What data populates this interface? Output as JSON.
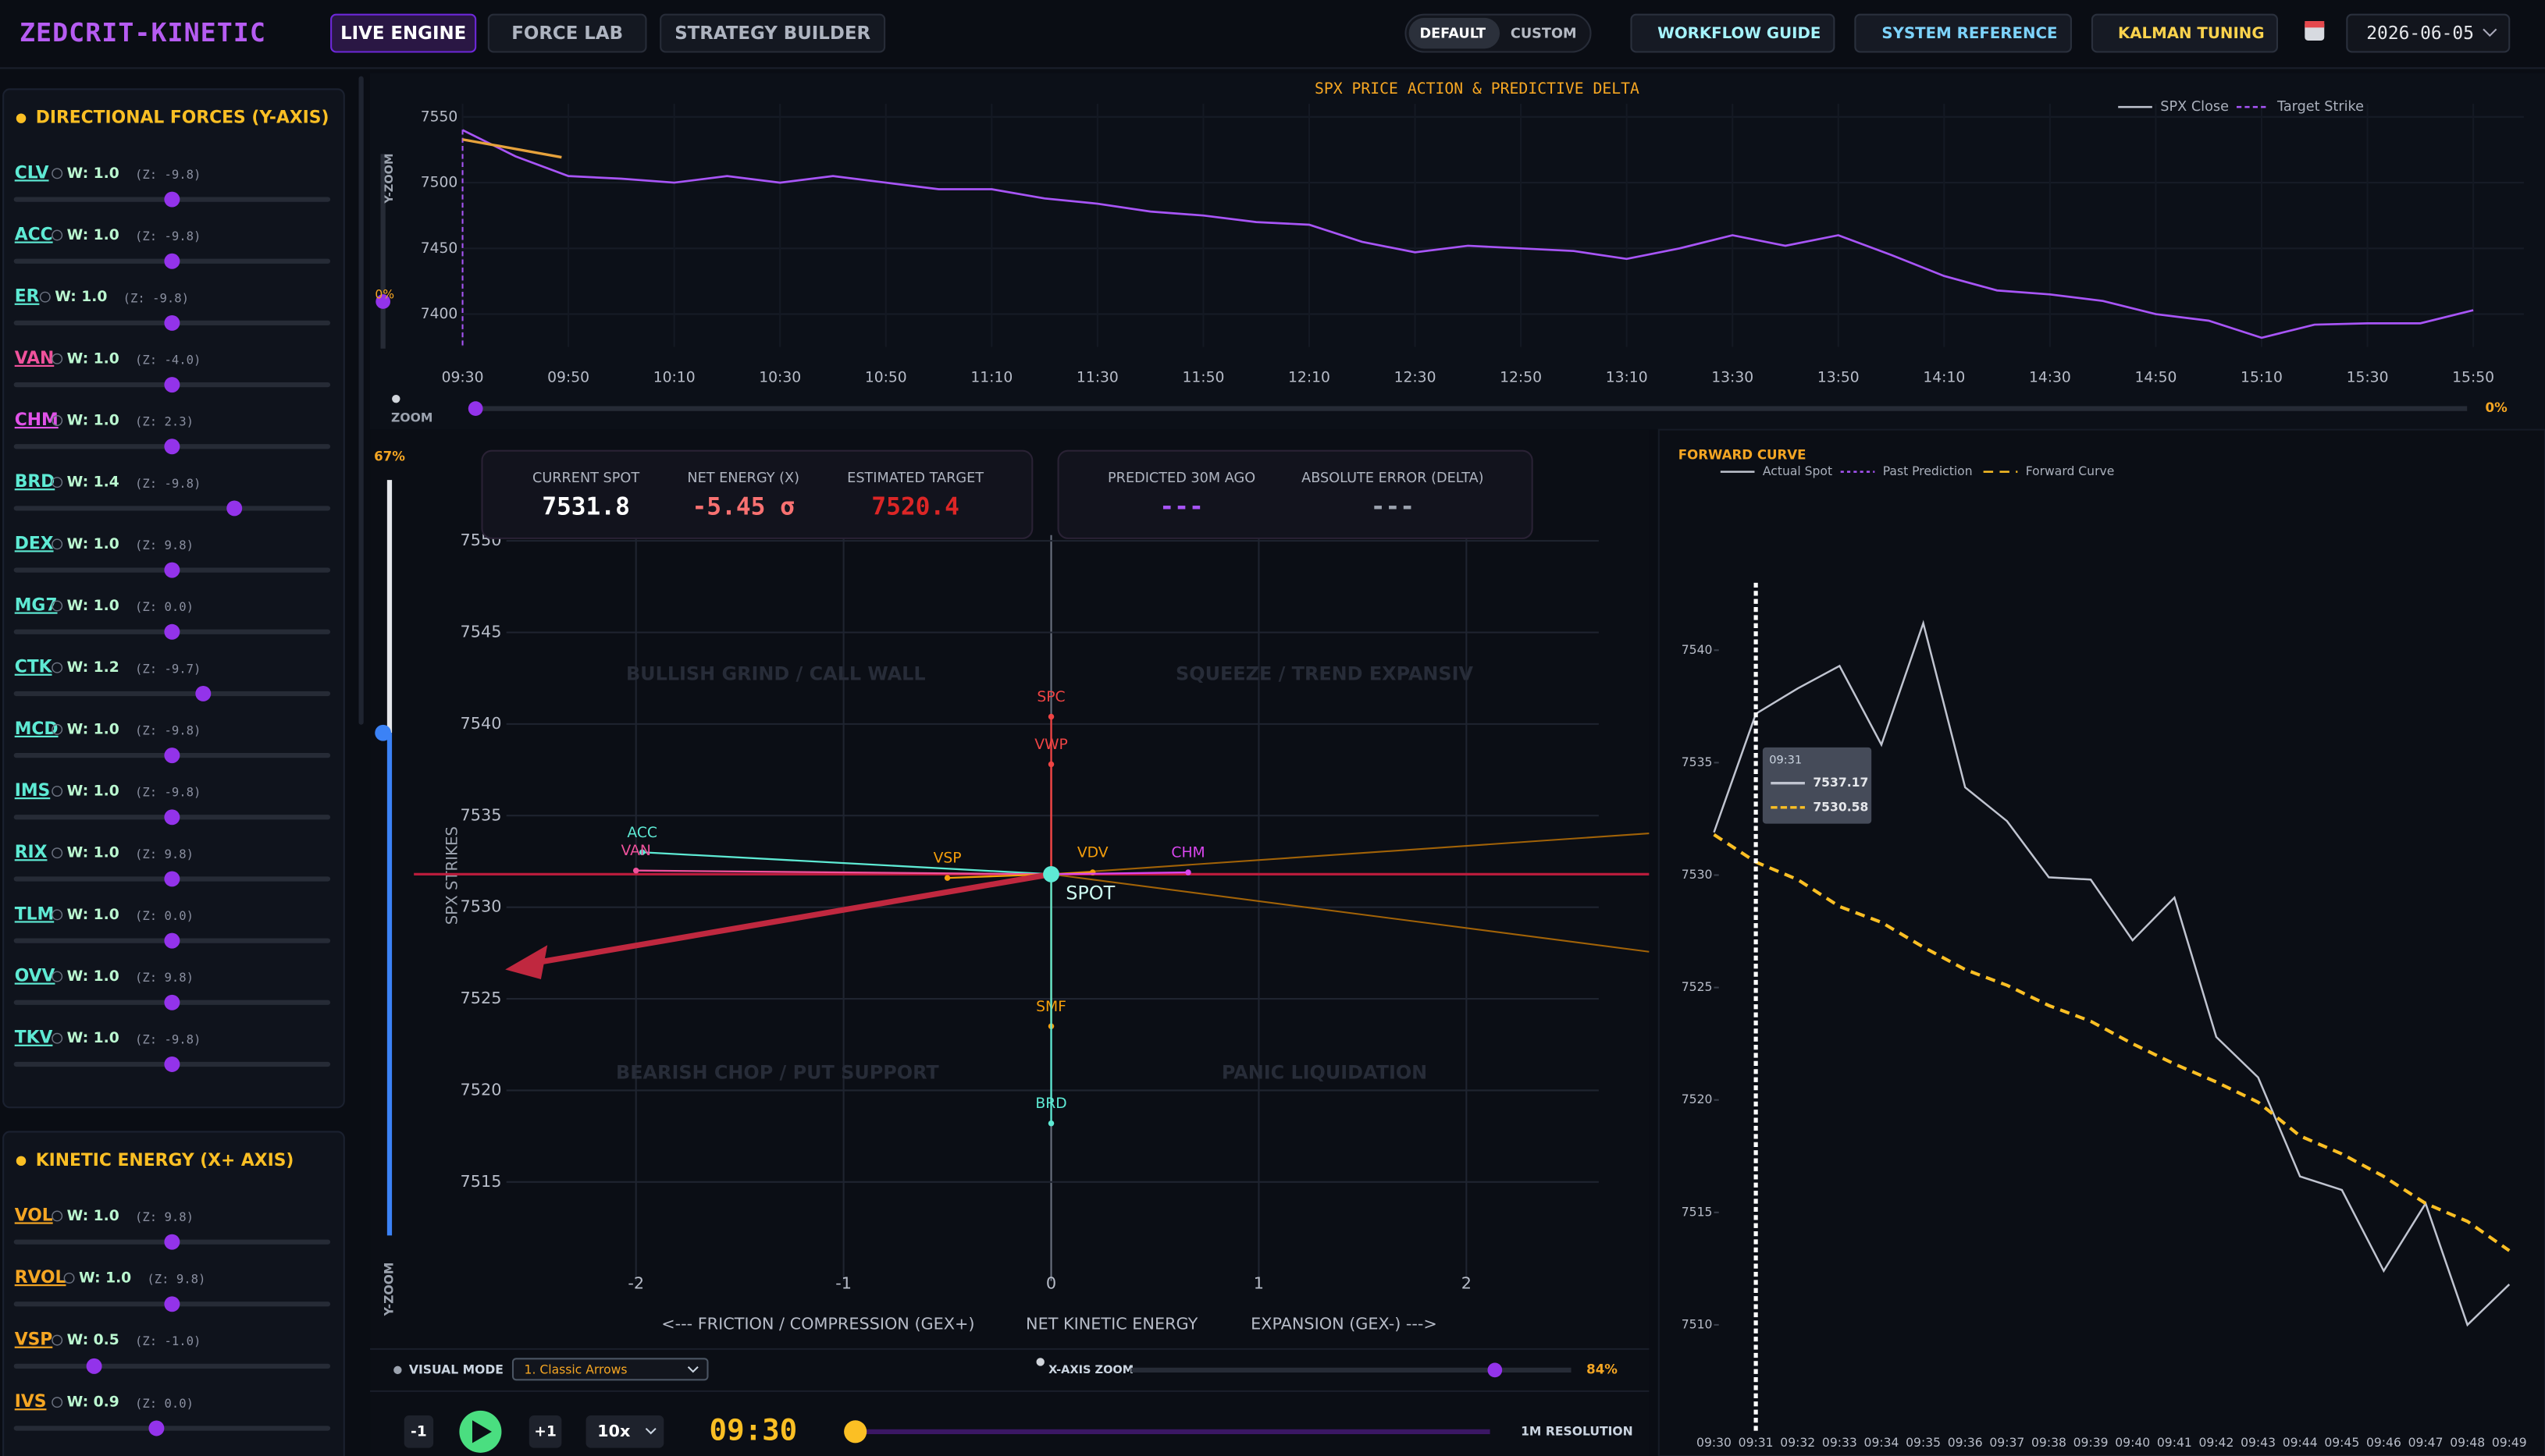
{
  "header": {
    "brand": "ZEDCRIT-KINETIC",
    "tabs": [
      "LIVE ENGINE",
      "FORCE LAB",
      "STRATEGY BUILDER"
    ],
    "modes": [
      "DEFAULT",
      "CUSTOM"
    ],
    "buttons": [
      "WORKFLOW GUIDE",
      "SYSTEM REFERENCE",
      "KALMAN TUNING"
    ],
    "date": "2026-06-05"
  },
  "directional_forces": {
    "title": "DIRECTIONAL FORCES (Y-AXIS)",
    "weight_range": [
      0,
      2
    ],
    "items": [
      {
        "code": "CLV",
        "color": "#5eead4",
        "weight": 1.0,
        "weight_label": "W: 1.0",
        "z_label": "(Z: -9.8)"
      },
      {
        "code": "ACC",
        "color": "#5eead4",
        "weight": 1.0,
        "weight_label": "W: 1.0",
        "z_label": "(Z: -9.8)"
      },
      {
        "code": "ER",
        "color": "#5eead4",
        "weight": 1.0,
        "weight_label": "W: 1.0",
        "z_label": "(Z: -9.8)"
      },
      {
        "code": "VAN",
        "color": "#f0529c",
        "weight": 1.0,
        "weight_label": "W: 1.0",
        "z_label": "(Z: -4.0)"
      },
      {
        "code": "CHM",
        "color": "#e052e8",
        "weight": 1.0,
        "weight_label": "W: 1.0",
        "z_label": "(Z: 2.3)"
      },
      {
        "code": "BRD",
        "color": "#5eead4",
        "weight": 1.4,
        "weight_label": "W: 1.4",
        "z_label": "(Z: -9.8)"
      },
      {
        "code": "DEX",
        "color": "#5eead4",
        "weight": 1.0,
        "weight_label": "W: 1.0",
        "z_label": "(Z: 9.8)"
      },
      {
        "code": "MG7",
        "color": "#5eead4",
        "weight": 1.0,
        "weight_label": "W: 1.0",
        "z_label": "(Z: 0.0)"
      },
      {
        "code": "CTK",
        "color": "#5eead4",
        "weight": 1.2,
        "weight_label": "W: 1.2",
        "z_label": "(Z: -9.7)"
      },
      {
        "code": "MCD",
        "color": "#5eead4",
        "weight": 1.0,
        "weight_label": "W: 1.0",
        "z_label": "(Z: -9.8)"
      },
      {
        "code": "IMS",
        "color": "#5eead4",
        "weight": 1.0,
        "weight_label": "W: 1.0",
        "z_label": "(Z: -9.8)"
      },
      {
        "code": "RIX",
        "color": "#5eead4",
        "weight": 1.0,
        "weight_label": "W: 1.0",
        "z_label": "(Z: 9.8)"
      },
      {
        "code": "TLM",
        "color": "#5eead4",
        "weight": 1.0,
        "weight_label": "W: 1.0",
        "z_label": "(Z: 0.0)"
      },
      {
        "code": "OVV",
        "color": "#5eead4",
        "weight": 1.0,
        "weight_label": "W: 1.0",
        "z_label": "(Z: 9.8)"
      },
      {
        "code": "TKV",
        "color": "#5eead4",
        "weight": 1.0,
        "weight_label": "W: 1.0",
        "z_label": "(Z: -9.8)"
      }
    ]
  },
  "kinetic_energy": {
    "title": "KINETIC ENERGY (X+ AXIS)",
    "weight_range": [
      0,
      2
    ],
    "items": [
      {
        "code": "VOL",
        "color": "#f5a623",
        "weight": 1.0,
        "weight_label": "W: 1.0",
        "z_label": "(Z: 9.8)"
      },
      {
        "code": "RVOL",
        "color": "#f5a623",
        "weight": 1.0,
        "weight_label": "W: 1.0",
        "z_label": "(Z: 9.8)"
      },
      {
        "code": "VSP",
        "color": "#f5a623",
        "weight": 0.5,
        "weight_label": "W: 0.5",
        "z_label": "(Z: -1.0)"
      },
      {
        "code": "IVS",
        "color": "#f5a623",
        "weight": 0.9,
        "weight_label": "W: 0.9",
        "z_label": "(Z: 0.0)"
      }
    ]
  },
  "price_chart": {
    "type": "line",
    "title": "SPX PRICE ACTION & PREDICTIVE DELTA",
    "categories": [
      "09:30",
      null,
      "09:50",
      null,
      "10:10",
      null,
      "10:30",
      null,
      "10:50",
      null,
      "11:10",
      null,
      "11:30",
      null,
      "11:50",
      null,
      "12:10",
      null,
      "12:30",
      null,
      "12:50",
      null,
      "13:10",
      null,
      "13:30",
      null,
      "13:50",
      null,
      "14:10",
      null,
      "14:30",
      null,
      "14:50",
      null,
      "15:10",
      null,
      "15:30",
      null,
      "15:50"
    ],
    "series": [
      {
        "name": "SPX Close",
        "color": "#a855f7",
        "values": [
          7540,
          7520,
          7505,
          7503,
          7500,
          7505,
          7500,
          7505,
          7500,
          7495,
          7495,
          7488,
          7484,
          7478,
          7475,
          7470,
          7468,
          7455,
          7447,
          7452,
          7450,
          7448,
          7442,
          7450,
          7460,
          7452,
          7460,
          7445,
          7429,
          7418,
          7415,
          7410,
          7400,
          7395,
          7382,
          7392,
          7393,
          7393,
          7403
        ]
      }
    ],
    "target_strike": {
      "name": "Target Strike",
      "color": "#a855f7"
    },
    "ylim": [
      7375,
      7560
    ],
    "yticks": [
      7400,
      7450,
      7500,
      7550
    ],
    "grid": true,
    "y_zoom_label": "Y-ZOOM",
    "y_zoom_value": "0%",
    "x_zoom_label": "ZOOM",
    "x_zoom_value": "0%"
  },
  "quadrant": {
    "type": "vector",
    "y_label": "SPX STRIKES",
    "x_labels": [
      "<--- FRICTION / COMPRESSION (GEX+)",
      "NET KINETIC ENERGY",
      "EXPANSION (GEX-) --->"
    ],
    "regions": [
      "BULLISH GRIND / CALL WALL",
      "SQUEEZE / TREND EXPANSIV",
      "BEARISH CHOP / PUT SUPPORT",
      "PANIC LIQUIDATION"
    ],
    "xlim": [
      -3.07,
      2.88
    ],
    "ylim": [
      7509.6,
      7551.2
    ],
    "xticks": [
      -2,
      -1,
      0,
      1,
      2
    ],
    "yticks": [
      7515,
      7520,
      7525,
      7530,
      7535,
      7540,
      7545,
      7550
    ],
    "grid": true,
    "spot": {
      "label": "SPOT",
      "x": 0,
      "y": 7531.8,
      "color": "#5eead4"
    },
    "net_vector": {
      "x": -2.63,
      "y": 7526.6,
      "color": "#c0283f"
    },
    "vectors": [
      {
        "name": "ACC",
        "x": -1.97,
        "y": 7533,
        "color": "#5eead4"
      },
      {
        "name": "VAN",
        "x": -2.0,
        "y": 7532,
        "color": "#f0529c"
      },
      {
        "name": "VSP",
        "x": -0.5,
        "y": 7531.6,
        "color": "#f59e0b"
      },
      {
        "name": "VDV",
        "x": 0.2,
        "y": 7531.9,
        "color": "#f59e0b"
      },
      {
        "name": "CHM",
        "x": 0.66,
        "y": 7531.9,
        "color": "#d946ef"
      },
      {
        "name": "SPC",
        "x": 0,
        "y": 7540.4,
        "color": "#ef4444"
      },
      {
        "name": "VWP",
        "x": 0,
        "y": 7537.8,
        "color": "#ef4444"
      },
      {
        "name": "SMF",
        "x": 0,
        "y": 7523.5,
        "color": "#f59e0b"
      },
      {
        "name": "BRD",
        "x": 0,
        "y": 7518.2,
        "color": "#5eead4"
      }
    ],
    "y_zoom_label": "Y-ZOOM",
    "y_zoom_value": "67%"
  },
  "metrics": [
    {
      "label": "CURRENT SPOT",
      "value": "7531.8",
      "color": "#ffffff"
    },
    {
      "label": "NET ENERGY (X)",
      "value": "-5.45 σ",
      "color": "#f87171"
    },
    {
      "label": "ESTIMATED TARGET",
      "value": "7520.4",
      "color": "#dc2626"
    },
    {
      "label": "PREDICTED 30M AGO",
      "value": "---",
      "color": "#a855f7"
    },
    {
      "label": "ABSOLUTE ERROR (DELTA)",
      "value": "---",
      "color": "#9ca3af"
    }
  ],
  "controls": {
    "visual_mode_label": "VISUAL MODE",
    "visual_mode": "1. Classic Arrows",
    "x_zoom_label": "X-AXIS ZOOM",
    "x_zoom_value": "84%",
    "step_back": "-1",
    "step_forward": "+1",
    "speed": "10x",
    "time": "09:30",
    "resolution": "1M RESOLUTION"
  },
  "forward_curve": {
    "type": "line",
    "title": "FORWARD CURVE",
    "categories": [
      "09:30",
      "09:31",
      "09:32",
      "09:33",
      "09:34",
      "09:35",
      "09:36",
      "09:37",
      "09:38",
      "09:39",
      "09:40",
      "09:41",
      "09:42",
      "09:43",
      "09:44",
      "09:45",
      "09:46",
      "09:47",
      "09:48",
      "09:49"
    ],
    "series": [
      {
        "name": "Actual Spot",
        "color": "#c0c4d0",
        "values": [
          7531.9,
          7537.17,
          7538.3,
          7539.3,
          7535.8,
          7541.2,
          7533.9,
          7532.4,
          7529.9,
          7529.8,
          7527.1,
          7529,
          7522.8,
          7521,
          7516.6,
          7516,
          7512.4,
          7515.4,
          7510,
          7511.8
        ]
      },
      {
        "name": "Past Prediction",
        "color": "#a855f7",
        "values": [
          null,
          null,
          null,
          null,
          null,
          null,
          null,
          null,
          null,
          null,
          null,
          null,
          null,
          null,
          null,
          null,
          null,
          null,
          null,
          null
        ]
      },
      {
        "name": "Forward Curve",
        "color": "#fbbf24",
        "values": [
          7531.8,
          7530.58,
          7529.8,
          7528.6,
          7527.9,
          7526.8,
          7525.8,
          7525.1,
          7524.2,
          7523.5,
          7522.5,
          7521.6,
          7520.8,
          7519.9,
          7518.4,
          7517.6,
          7516.6,
          7515.4,
          7514.6,
          7513.3
        ]
      }
    ],
    "ylim": [
      7506,
      7543
    ],
    "yticks": [
      7510,
      7515,
      7520,
      7525,
      7530,
      7535,
      7540
    ],
    "tooltip": {
      "time": "09:31",
      "values": [
        "7537.17",
        "7530.58"
      ]
    }
  }
}
